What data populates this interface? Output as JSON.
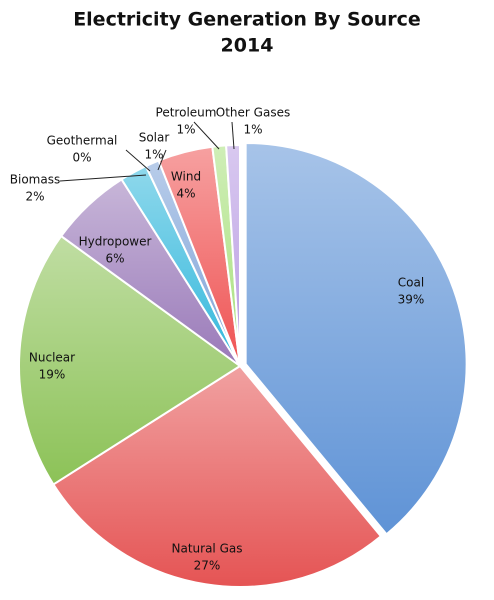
{
  "chart_data": {
    "type": "pie",
    "title": "Electricity Generation By Source",
    "subtitle": "2014",
    "categories": [
      "Coal",
      "Natural Gas",
      "Nuclear",
      "Hydropower",
      "Biomass",
      "Geothermal",
      "Solar",
      "Wind",
      "Petroleum",
      "Other Gases"
    ],
    "values": [
      39,
      27,
      19,
      6,
      2,
      0,
      1,
      4,
      1,
      1
    ],
    "value_labels": [
      "39%",
      "27%",
      "19%",
      "6%",
      "2%",
      "0%",
      "1%",
      "4%",
      "1%",
      "1%"
    ],
    "colors": [
      "#5f93d6",
      "#e55454",
      "#8cc257",
      "#9a7ab9",
      "#33b8dc",
      "#f5963a",
      "#7ea3d8",
      "#ef5353",
      "#a8e07c",
      "#b99ce3"
    ]
  }
}
